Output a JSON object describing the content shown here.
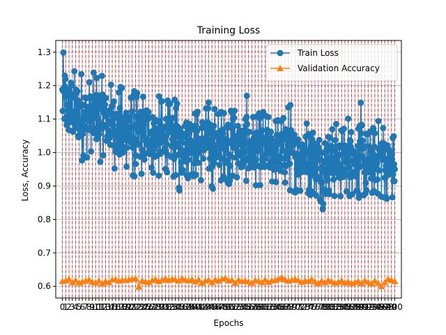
{
  "chart_data": {
    "type": "line",
    "title": "Training Loss",
    "xlabel": "Epochs",
    "ylabel": "Loss, Accuracy",
    "xlim": [
      -2,
      102
    ],
    "ylim": [
      0.565,
      1.335
    ],
    "yticks": [
      0.6,
      0.7,
      0.8,
      0.9,
      1.0,
      1.1,
      1.2,
      1.3
    ],
    "ytick_labels": [
      "0.6",
      "0.7",
      "0.8",
      "0.9",
      "1.0",
      "1.1",
      "1.2",
      "1.3"
    ],
    "xticks": [
      0,
      1,
      2,
      3,
      4,
      5,
      6,
      7,
      8,
      9,
      10,
      11,
      12,
      13,
      14,
      15,
      16,
      17,
      18,
      19,
      20,
      21,
      22,
      23,
      24,
      25,
      26,
      27,
      28,
      29,
      30,
      31,
      32,
      33,
      34,
      35,
      36,
      37,
      38,
      39,
      40,
      41,
      42,
      43,
      44,
      45,
      46,
      47,
      48,
      49,
      50,
      51,
      52,
      53,
      54,
      55,
      56,
      57,
      58,
      59,
      60,
      61,
      62,
      63,
      64,
      65,
      66,
      67,
      68,
      69,
      70,
      71,
      72,
      73,
      74,
      75,
      76,
      77,
      78,
      79,
      80,
      81,
      82,
      83,
      84,
      85,
      86,
      87,
      88,
      89,
      90,
      91,
      92,
      93,
      94,
      95,
      96,
      97,
      98,
      99,
      100
    ],
    "grid": true,
    "legend_position": "upper right",
    "series": [
      {
        "name": "Train Loss",
        "color": "#1f77b4",
        "marker": "circle",
        "values_range_per_epoch": [
          [
            1.02,
            1.3
          ],
          [
            1.01,
            1.25
          ],
          [
            1.0,
            1.27
          ],
          [
            0.99,
            1.25
          ],
          [
            0.98,
            1.26
          ],
          [
            0.97,
            1.25
          ],
          [
            0.99,
            1.24
          ],
          [
            0.98,
            1.23
          ],
          [
            1.0,
            1.22
          ],
          [
            0.98,
            1.24
          ],
          [
            0.98,
            1.24
          ],
          [
            0.97,
            1.23
          ],
          [
            0.99,
            1.24
          ],
          [
            0.97,
            1.22
          ],
          [
            0.96,
            1.21
          ],
          [
            0.95,
            1.22
          ],
          [
            0.94,
            1.2
          ],
          [
            0.93,
            1.2
          ],
          [
            0.9,
            1.19
          ],
          [
            0.95,
            1.2
          ],
          [
            0.94,
            1.18
          ],
          [
            0.92,
            1.19
          ],
          [
            0.88,
            1.18
          ],
          [
            0.93,
            1.18
          ],
          [
            0.91,
            1.18
          ],
          [
            0.95,
            1.19
          ],
          [
            0.94,
            1.18
          ],
          [
            0.93,
            1.16
          ],
          [
            0.93,
            1.17
          ],
          [
            0.92,
            1.17
          ],
          [
            0.93,
            1.16
          ],
          [
            0.94,
            1.16
          ],
          [
            0.93,
            1.15
          ],
          [
            0.92,
            1.16
          ],
          [
            0.92,
            1.15
          ],
          [
            0.88,
            1.14
          ],
          [
            0.93,
            1.14
          ],
          [
            0.92,
            1.14
          ],
          [
            0.93,
            1.15
          ],
          [
            0.92,
            1.13
          ],
          [
            0.92,
            1.13
          ],
          [
            0.91,
            1.13
          ],
          [
            0.92,
            1.15
          ],
          [
            0.92,
            1.14
          ],
          [
            0.88,
            1.16
          ],
          [
            0.89,
            1.14
          ],
          [
            0.92,
            1.13
          ],
          [
            0.91,
            1.13
          ],
          [
            0.92,
            1.13
          ],
          [
            0.91,
            1.15
          ],
          [
            0.9,
            1.13
          ],
          [
            0.91,
            1.19
          ],
          [
            0.92,
            1.14
          ],
          [
            0.9,
            1.13
          ],
          [
            0.9,
            1.12
          ],
          [
            0.91,
            1.17
          ],
          [
            0.88,
            1.12
          ],
          [
            0.9,
            1.12
          ],
          [
            0.9,
            1.11
          ],
          [
            0.9,
            1.12
          ],
          [
            0.88,
            1.13
          ],
          [
            0.9,
            1.12
          ],
          [
            0.9,
            1.11
          ],
          [
            0.9,
            1.11
          ],
          [
            0.9,
            1.11
          ],
          [
            0.89,
            1.11
          ],
          [
            0.89,
            1.11
          ],
          [
            0.89,
            1.15
          ],
          [
            0.88,
            1.15
          ],
          [
            0.88,
            1.11
          ],
          [
            0.88,
            1.1
          ],
          [
            0.88,
            1.1
          ],
          [
            0.87,
            1.12
          ],
          [
            0.89,
            1.1
          ],
          [
            0.87,
            1.11
          ],
          [
            0.87,
            1.12
          ],
          [
            0.86,
            1.09
          ],
          [
            0.85,
            1.1
          ],
          [
            0.83,
            1.09
          ],
          [
            0.86,
            1.09
          ],
          [
            0.87,
            1.1
          ],
          [
            0.86,
            1.08
          ],
          [
            0.87,
            1.09
          ],
          [
            0.86,
            1.08
          ],
          [
            0.87,
            1.08
          ],
          [
            0.88,
            1.08
          ],
          [
            0.86,
            1.12
          ],
          [
            0.87,
            1.11
          ],
          [
            0.87,
            1.07
          ],
          [
            0.86,
            1.15
          ],
          [
            0.86,
            1.09
          ],
          [
            0.82,
            1.07
          ],
          [
            0.86,
            1.07
          ],
          [
            0.87,
            1.08
          ],
          [
            0.87,
            1.07
          ],
          [
            0.88,
            1.1
          ],
          [
            0.85,
            1.14
          ],
          [
            0.86,
            1.07
          ],
          [
            0.87,
            1.06
          ],
          [
            0.85,
            1.06
          ],
          [
            0.85,
            1.05
          ]
        ]
      },
      {
        "name": "Validation Accuracy",
        "color": "#ff7f0e",
        "marker": "triangle",
        "values": [
          0.615,
          0.617,
          0.622,
          0.612,
          0.618,
          0.61,
          0.614,
          0.616,
          0.62,
          0.613,
          0.611,
          0.617,
          0.608,
          0.615,
          0.612,
          0.62,
          0.621,
          0.616,
          0.619,
          0.618,
          0.62,
          0.622,
          0.624,
          0.598,
          0.617,
          0.614,
          0.612,
          0.618,
          0.621,
          0.615,
          0.619,
          0.623,
          0.618,
          0.622,
          0.62,
          0.616,
          0.624,
          0.619,
          0.617,
          0.621,
          0.614,
          0.62,
          0.61,
          0.616,
          0.619,
          0.612,
          0.62,
          0.616,
          0.622,
          0.625,
          0.617,
          0.619,
          0.61,
          0.619,
          0.615,
          0.617,
          0.614,
          0.61,
          0.618,
          0.616,
          0.612,
          0.62,
          0.613,
          0.617,
          0.618,
          0.622,
          0.627,
          0.62,
          0.616,
          0.619,
          0.622,
          0.618,
          0.613,
          0.617,
          0.615,
          0.621,
          0.614,
          0.609,
          0.616,
          0.612,
          0.618,
          0.615,
          0.61,
          0.613,
          0.617,
          0.611,
          0.614,
          0.609,
          0.612,
          0.615,
          0.609,
          0.617,
          0.613,
          0.608,
          0.617,
          0.61,
          0.6,
          0.612,
          0.622,
          0.618,
          0.615
        ]
      }
    ],
    "vertical_dashed_lines_color": "#d62728"
  }
}
